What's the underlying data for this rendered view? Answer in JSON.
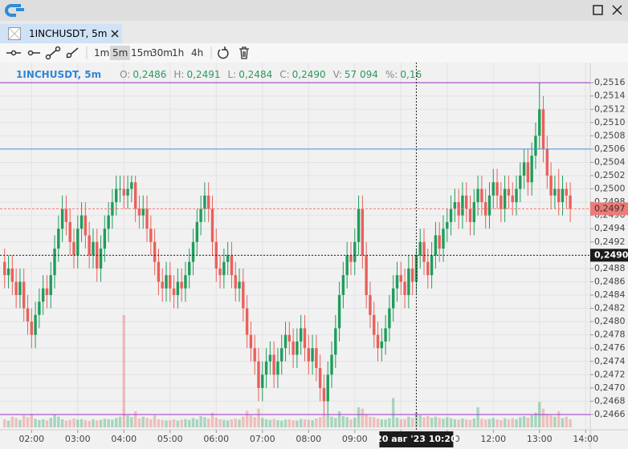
{
  "window": {
    "tab": "1INCHUSDT, 5m"
  },
  "toolbar": {
    "timeframes": [
      "1m",
      "5m",
      "15m",
      "30m",
      "1h",
      "4h"
    ],
    "selected_index": 1
  },
  "legend": {
    "symbol": "1INCHUSDT, 5m",
    "fields": [
      {
        "key": "O:",
        "value": "0,2486"
      },
      {
        "key": "H:",
        "value": "0,2491"
      },
      {
        "key": "L:",
        "value": "0,2484"
      },
      {
        "key": "C:",
        "value": "0,2490"
      },
      {
        "key": "V:",
        "value": "57 094"
      },
      {
        "key": "%:",
        "value": "0,16"
      }
    ]
  },
  "chart_data": {
    "type": "candlestick",
    "x": [
      85,
      90,
      95,
      100,
      105,
      110,
      115,
      120,
      125,
      130,
      135,
      140,
      145,
      150,
      155,
      160,
      165,
      170,
      175,
      180,
      185,
      190,
      195,
      200,
      205,
      210,
      215,
      220,
      225,
      230,
      235,
      240,
      245,
      250,
      255,
      260,
      265,
      270,
      275,
      280,
      285,
      290,
      295,
      300,
      305,
      310,
      315,
      320,
      325,
      330,
      335,
      340,
      345,
      350,
      355,
      360,
      365,
      370,
      375,
      380,
      385,
      390,
      395,
      400,
      405,
      410,
      415,
      420,
      425,
      430,
      435,
      440,
      445,
      450,
      455,
      460,
      465,
      470,
      475,
      480,
      485,
      490,
      495,
      500,
      505,
      510,
      515,
      520,
      525,
      530,
      535,
      540,
      545,
      550,
      555,
      560,
      565,
      570,
      575,
      580,
      585,
      590,
      595,
      600,
      605,
      610,
      615,
      620,
      625,
      630,
      635,
      640,
      645,
      650,
      655,
      660,
      665,
      670,
      675,
      680,
      685,
      690,
      695,
      700,
      705,
      710,
      715,
      720,
      725,
      730,
      735,
      740,
      745,
      750,
      755,
      760,
      765,
      770,
      775,
      780,
      785,
      790,
      795,
      800,
      805,
      810,
      815,
      820
    ],
    "open": [
      0.2489,
      0.2487,
      0.2488,
      0.2486,
      0.2484,
      0.2486,
      0.2482,
      0.248,
      0.2478,
      0.2481,
      0.2483,
      0.2485,
      0.2484,
      0.2487,
      0.2491,
      0.2494,
      0.2497,
      0.2495,
      0.2492,
      0.249,
      0.2494,
      0.2496,
      0.2493,
      0.249,
      0.2492,
      0.2488,
      0.2491,
      0.2494,
      0.2496,
      0.2498,
      0.25,
      0.25,
      0.2499,
      0.25,
      0.2501,
      0.2497,
      0.2496,
      0.2497,
      0.2494,
      0.2492,
      0.2489,
      0.2486,
      0.2485,
      0.2487,
      0.2485,
      0.2484,
      0.2486,
      0.2485,
      0.2487,
      0.2489,
      0.2492,
      0.2495,
      0.2497,
      0.2499,
      0.2497,
      0.2492,
      0.2488,
      0.2487,
      0.2489,
      0.249,
      0.2487,
      0.2485,
      0.2486,
      0.2482,
      0.2478,
      0.2476,
      0.2474,
      0.247,
      0.2472,
      0.2474,
      0.2475,
      0.2472,
      0.2474,
      0.2476,
      0.2478,
      0.2477,
      0.2475,
      0.2477,
      0.2479,
      0.2476,
      0.2474,
      0.2476,
      0.2473,
      0.247,
      0.2468,
      0.2472,
      0.2475,
      0.2479,
      0.2484,
      0.2487,
      0.249,
      0.2489,
      0.2492,
      0.2497,
      0.249,
      0.2484,
      0.2481,
      0.2478,
      0.2476,
      0.2477,
      0.2479,
      0.2482,
      0.2485,
      0.2487,
      0.2486,
      0.2484,
      0.2488,
      0.2486,
      0.249,
      0.2492,
      0.2489,
      0.2487,
      0.249,
      0.2493,
      0.2491,
      0.2494,
      0.2495,
      0.2497,
      0.2498,
      0.2496,
      0.2499,
      0.2497,
      0.2495,
      0.2498,
      0.25,
      0.2498,
      0.2496,
      0.2499,
      0.2501,
      0.2499,
      0.2497,
      0.25,
      0.2499,
      0.2498,
      0.25,
      0.2502,
      0.2504,
      0.2501,
      0.2505,
      0.2508,
      0.2512,
      0.2506,
      0.2502,
      0.2499,
      0.25,
      0.2498,
      0.25,
      0.2499
    ],
    "high": [
      0.2491,
      0.249,
      0.249,
      0.2488,
      0.2488,
      0.2488,
      0.2484,
      0.2482,
      0.2483,
      0.2485,
      0.2487,
      0.2487,
      0.2489,
      0.2493,
      0.2496,
      0.2499,
      0.2499,
      0.2497,
      0.2494,
      0.2496,
      0.2498,
      0.2498,
      0.2495,
      0.2494,
      0.2494,
      0.2493,
      0.2496,
      0.2498,
      0.25,
      0.2502,
      0.2502,
      0.2502,
      0.2502,
      0.2502,
      0.2502,
      0.2499,
      0.2499,
      0.2499,
      0.2496,
      0.2494,
      0.2491,
      0.2488,
      0.2489,
      0.2489,
      0.2487,
      0.2488,
      0.2488,
      0.2489,
      0.2491,
      0.2494,
      0.2497,
      0.2499,
      0.2501,
      0.2501,
      0.2499,
      0.2494,
      0.249,
      0.2491,
      0.2492,
      0.2492,
      0.2489,
      0.2488,
      0.2488,
      0.2484,
      0.248,
      0.2478,
      0.2476,
      0.2474,
      0.2476,
      0.2477,
      0.2477,
      0.2476,
      0.2478,
      0.248,
      0.248,
      0.2479,
      0.2479,
      0.2481,
      0.2481,
      0.2478,
      0.2478,
      0.2478,
      0.2475,
      0.2472,
      0.2474,
      0.2477,
      0.2481,
      0.2486,
      0.2489,
      0.2492,
      0.2492,
      0.2494,
      0.2499,
      0.2499,
      0.2492,
      0.2486,
      0.2483,
      0.248,
      0.2479,
      0.2481,
      0.2484,
      0.2487,
      0.2489,
      0.2489,
      0.2488,
      0.249,
      0.249,
      0.2491,
      0.2494,
      0.2494,
      0.2491,
      0.2492,
      0.2495,
      0.2495,
      0.2496,
      0.2497,
      0.2499,
      0.25,
      0.25,
      0.2501,
      0.2501,
      0.2499,
      0.25,
      0.2502,
      0.2502,
      0.25,
      0.2501,
      0.2503,
      0.2503,
      0.2501,
      0.2502,
      0.2502,
      0.2501,
      0.2502,
      0.2504,
      0.2506,
      0.2506,
      0.2507,
      0.251,
      0.2516,
      0.2514,
      0.2508,
      0.2504,
      0.2502,
      0.2503,
      0.2502,
      0.2501,
      0.2501
    ],
    "low": [
      0.2485,
      0.2485,
      0.2484,
      0.2482,
      0.2482,
      0.248,
      0.2478,
      0.2476,
      0.2476,
      0.2479,
      0.2481,
      0.2482,
      0.2482,
      0.2485,
      0.2489,
      0.2492,
      0.2493,
      0.249,
      0.2488,
      0.2488,
      0.2492,
      0.2491,
      0.2488,
      0.2488,
      0.2486,
      0.2486,
      0.2489,
      0.2492,
      0.2494,
      0.2496,
      0.2498,
      0.2497,
      0.2497,
      0.2498,
      0.2495,
      0.2494,
      0.2494,
      0.2492,
      0.249,
      0.2487,
      0.2484,
      0.2483,
      0.2483,
      0.2483,
      0.2482,
      0.2482,
      0.2483,
      0.2483,
      0.2485,
      0.2487,
      0.249,
      0.2493,
      0.2495,
      0.2495,
      0.249,
      0.2486,
      0.2485,
      0.2485,
      0.2487,
      0.2485,
      0.2483,
      0.2483,
      0.248,
      0.2476,
      0.2474,
      0.2472,
      0.2468,
      0.2468,
      0.247,
      0.2472,
      0.247,
      0.247,
      0.2472,
      0.2474,
      0.2475,
      0.2473,
      0.2473,
      0.2475,
      0.2474,
      0.2472,
      0.2472,
      0.2471,
      0.2468,
      0.2466,
      0.2466,
      0.247,
      0.2473,
      0.2477,
      0.2482,
      0.2485,
      0.2487,
      0.2487,
      0.249,
      0.2488,
      0.2482,
      0.2479,
      0.2476,
      0.2474,
      0.2474,
      0.2475,
      0.2477,
      0.248,
      0.2483,
      0.2484,
      0.2482,
      0.2482,
      0.2484,
      0.2484,
      0.2488,
      0.2487,
      0.2485,
      0.2485,
      0.2488,
      0.2489,
      0.2489,
      0.2492,
      0.2493,
      0.2495,
      0.2494,
      0.2494,
      0.2495,
      0.2493,
      0.2493,
      0.2496,
      0.2496,
      0.2494,
      0.2494,
      0.2497,
      0.2497,
      0.2495,
      0.2495,
      0.2497,
      0.2496,
      0.2496,
      0.2498,
      0.25,
      0.2499,
      0.2499,
      0.2503,
      0.2506,
      0.2504,
      0.25,
      0.2497,
      0.2497,
      0.2496,
      0.2496,
      0.2497,
      0.2495
    ],
    "close": [
      0.2487,
      0.2488,
      0.2486,
      0.2484,
      0.2486,
      0.2482,
      0.248,
      0.2478,
      0.2481,
      0.2483,
      0.2485,
      0.2484,
      0.2487,
      0.2491,
      0.2494,
      0.2497,
      0.2495,
      0.2492,
      0.249,
      0.2494,
      0.2496,
      0.2493,
      0.249,
      0.2492,
      0.2488,
      0.2491,
      0.2494,
      0.2496,
      0.2498,
      0.25,
      0.25,
      0.2499,
      0.25,
      0.2501,
      0.2497,
      0.2496,
      0.2497,
      0.2494,
      0.2492,
      0.2489,
      0.2486,
      0.2485,
      0.2487,
      0.2485,
      0.2484,
      0.2486,
      0.2485,
      0.2487,
      0.2489,
      0.2492,
      0.2495,
      0.2497,
      0.2499,
      0.2497,
      0.2492,
      0.2488,
      0.2487,
      0.2489,
      0.249,
      0.2487,
      0.2485,
      0.2486,
      0.2482,
      0.2478,
      0.2476,
      0.2474,
      0.247,
      0.2472,
      0.2474,
      0.2475,
      0.2472,
      0.2474,
      0.2476,
      0.2478,
      0.2477,
      0.2475,
      0.2477,
      0.2479,
      0.2476,
      0.2474,
      0.2476,
      0.2473,
      0.247,
      0.2468,
      0.2472,
      0.2475,
      0.2479,
      0.2484,
      0.2487,
      0.249,
      0.2489,
      0.2492,
      0.2497,
      0.249,
      0.2484,
      0.2481,
      0.2478,
      0.2476,
      0.2477,
      0.2479,
      0.2482,
      0.2485,
      0.2487,
      0.2486,
      0.2484,
      0.2488,
      0.2486,
      0.249,
      0.2492,
      0.2489,
      0.2487,
      0.249,
      0.2493,
      0.2491,
      0.2494,
      0.2495,
      0.2497,
      0.2498,
      0.2496,
      0.2499,
      0.2497,
      0.2495,
      0.2498,
      0.25,
      0.2498,
      0.2496,
      0.2499,
      0.2501,
      0.2499,
      0.2497,
      0.25,
      0.2499,
      0.2498,
      0.25,
      0.2502,
      0.2504,
      0.2501,
      0.2505,
      0.2508,
      0.2512,
      0.2506,
      0.2502,
      0.2499,
      0.25,
      0.2498,
      0.25,
      0.2499,
      0.2497
    ],
    "volume": [
      30000,
      25000,
      40000,
      35000,
      28000,
      45000,
      38000,
      50000,
      32000,
      27000,
      30000,
      26000,
      35000,
      48000,
      40000,
      30000,
      25000,
      28000,
      33000,
      29000,
      31000,
      27000,
      24000,
      30000,
      26000,
      28000,
      32000,
      30000,
      29000,
      35000,
      40000,
      420000,
      45000,
      38000,
      60000,
      33000,
      40000,
      35000,
      30000,
      45000,
      30000,
      28000,
      26000,
      27000,
      30000,
      25000,
      29000,
      31000,
      28000,
      35000,
      30000,
      42000,
      38000,
      33000,
      55000,
      36000,
      30000,
      28000,
      26000,
      30000,
      33000,
      29000,
      40000,
      62000,
      45000,
      38000,
      70000,
      35000,
      30000,
      28000,
      32000,
      27000,
      25000,
      29000,
      30000,
      27000,
      26000,
      31000,
      30000,
      28000,
      27000,
      33000,
      38000,
      48000,
      45000,
      40000,
      35000,
      60000,
      42000,
      38000,
      30000,
      36000,
      75000,
      70000,
      50000,
      40000,
      38000,
      32000,
      30000,
      29000,
      34000,
      110000,
      36000,
      30000,
      31000,
      40000,
      35000,
      57094,
      45000,
      38000,
      42000,
      36000,
      40000,
      35000,
      32000,
      38000,
      34000,
      30000,
      29000,
      33000,
      30000,
      28000,
      33000,
      75000,
      32000,
      29000,
      31000,
      35000,
      30000,
      27000,
      34000,
      30000,
      35000,
      30000,
      38000,
      42000,
      36000,
      45000,
      55000,
      95000,
      70000,
      50000,
      45000,
      40000,
      60000,
      35000,
      40000,
      30000
    ],
    "up_color": "#1f9d5c",
    "down_color": "#e9605a",
    "xlim": [
      79,
      846
    ],
    "xticks": [
      {
        "value": 120,
        "label": "02:00"
      },
      {
        "value": 180,
        "label": "03:00"
      },
      {
        "value": 240,
        "label": "04:00"
      },
      {
        "value": 300,
        "label": "05:00"
      },
      {
        "value": 360,
        "label": "06:00"
      },
      {
        "value": 420,
        "label": "07:00"
      },
      {
        "value": 480,
        "label": "08:00"
      },
      {
        "value": 540,
        "label": "09:00"
      },
      {
        "value": 600,
        "label": "10:00"
      },
      {
        "value": 660,
        "label": "11:00"
      },
      {
        "value": 720,
        "label": "12:00"
      },
      {
        "value": 780,
        "label": "13:00"
      },
      {
        "value": 840,
        "label": "14:00"
      }
    ],
    "ylim": [
      0.24637,
      0.25188
    ],
    "yticks": [
      {
        "value": 0.2466,
        "label": "0,2466"
      },
      {
        "value": 0.2468,
        "label": "0,2468"
      },
      {
        "value": 0.247,
        "label": "0,2470"
      },
      {
        "value": 0.2472,
        "label": "0,2472"
      },
      {
        "value": 0.2474,
        "label": "0,2474"
      },
      {
        "value": 0.2476,
        "label": "0,2476"
      },
      {
        "value": 0.2478,
        "label": "0,2478"
      },
      {
        "value": 0.248,
        "label": "0,2480"
      },
      {
        "value": 0.2482,
        "label": "0,2482"
      },
      {
        "value": 0.2484,
        "label": "0,2484"
      },
      {
        "value": 0.2486,
        "label": "0,2486"
      },
      {
        "value": 0.2488,
        "label": "0,2488"
      },
      {
        "value": 0.249,
        "label": "0,2490"
      },
      {
        "value": 0.2492,
        "label": "0,2492"
      },
      {
        "value": 0.2494,
        "label": "0,2494"
      },
      {
        "value": 0.2496,
        "label": "0,2496"
      },
      {
        "value": 0.2498,
        "label": "0,2498"
      },
      {
        "value": 0.25,
        "label": "0,2500"
      },
      {
        "value": 0.2502,
        "label": "0,2502"
      },
      {
        "value": 0.2504,
        "label": "0,2504"
      },
      {
        "value": 0.2506,
        "label": "0,2506"
      },
      {
        "value": 0.2508,
        "label": "0,2508"
      },
      {
        "value": 0.251,
        "label": "0,2510"
      },
      {
        "value": 0.2512,
        "label": "0,2512"
      },
      {
        "value": 0.2514,
        "label": "0,2514"
      },
      {
        "value": 0.2516,
        "label": "0,2516"
      }
    ],
    "grid": true,
    "lines": [
      {
        "value": 0.2516,
        "color": "#9b30c8"
      },
      {
        "value": 0.2506,
        "color": "#4a90d9"
      },
      {
        "value": 0.2466,
        "color": "#9b30c8"
      }
    ],
    "price_marker": {
      "value": 0.2497,
      "label": "0,2497",
      "color": "#ee7b78"
    },
    "crosshair": {
      "x": 620,
      "x_label": "20 авг '23 10:20",
      "y": 0.249,
      "y_label": "0,2490"
    }
  }
}
